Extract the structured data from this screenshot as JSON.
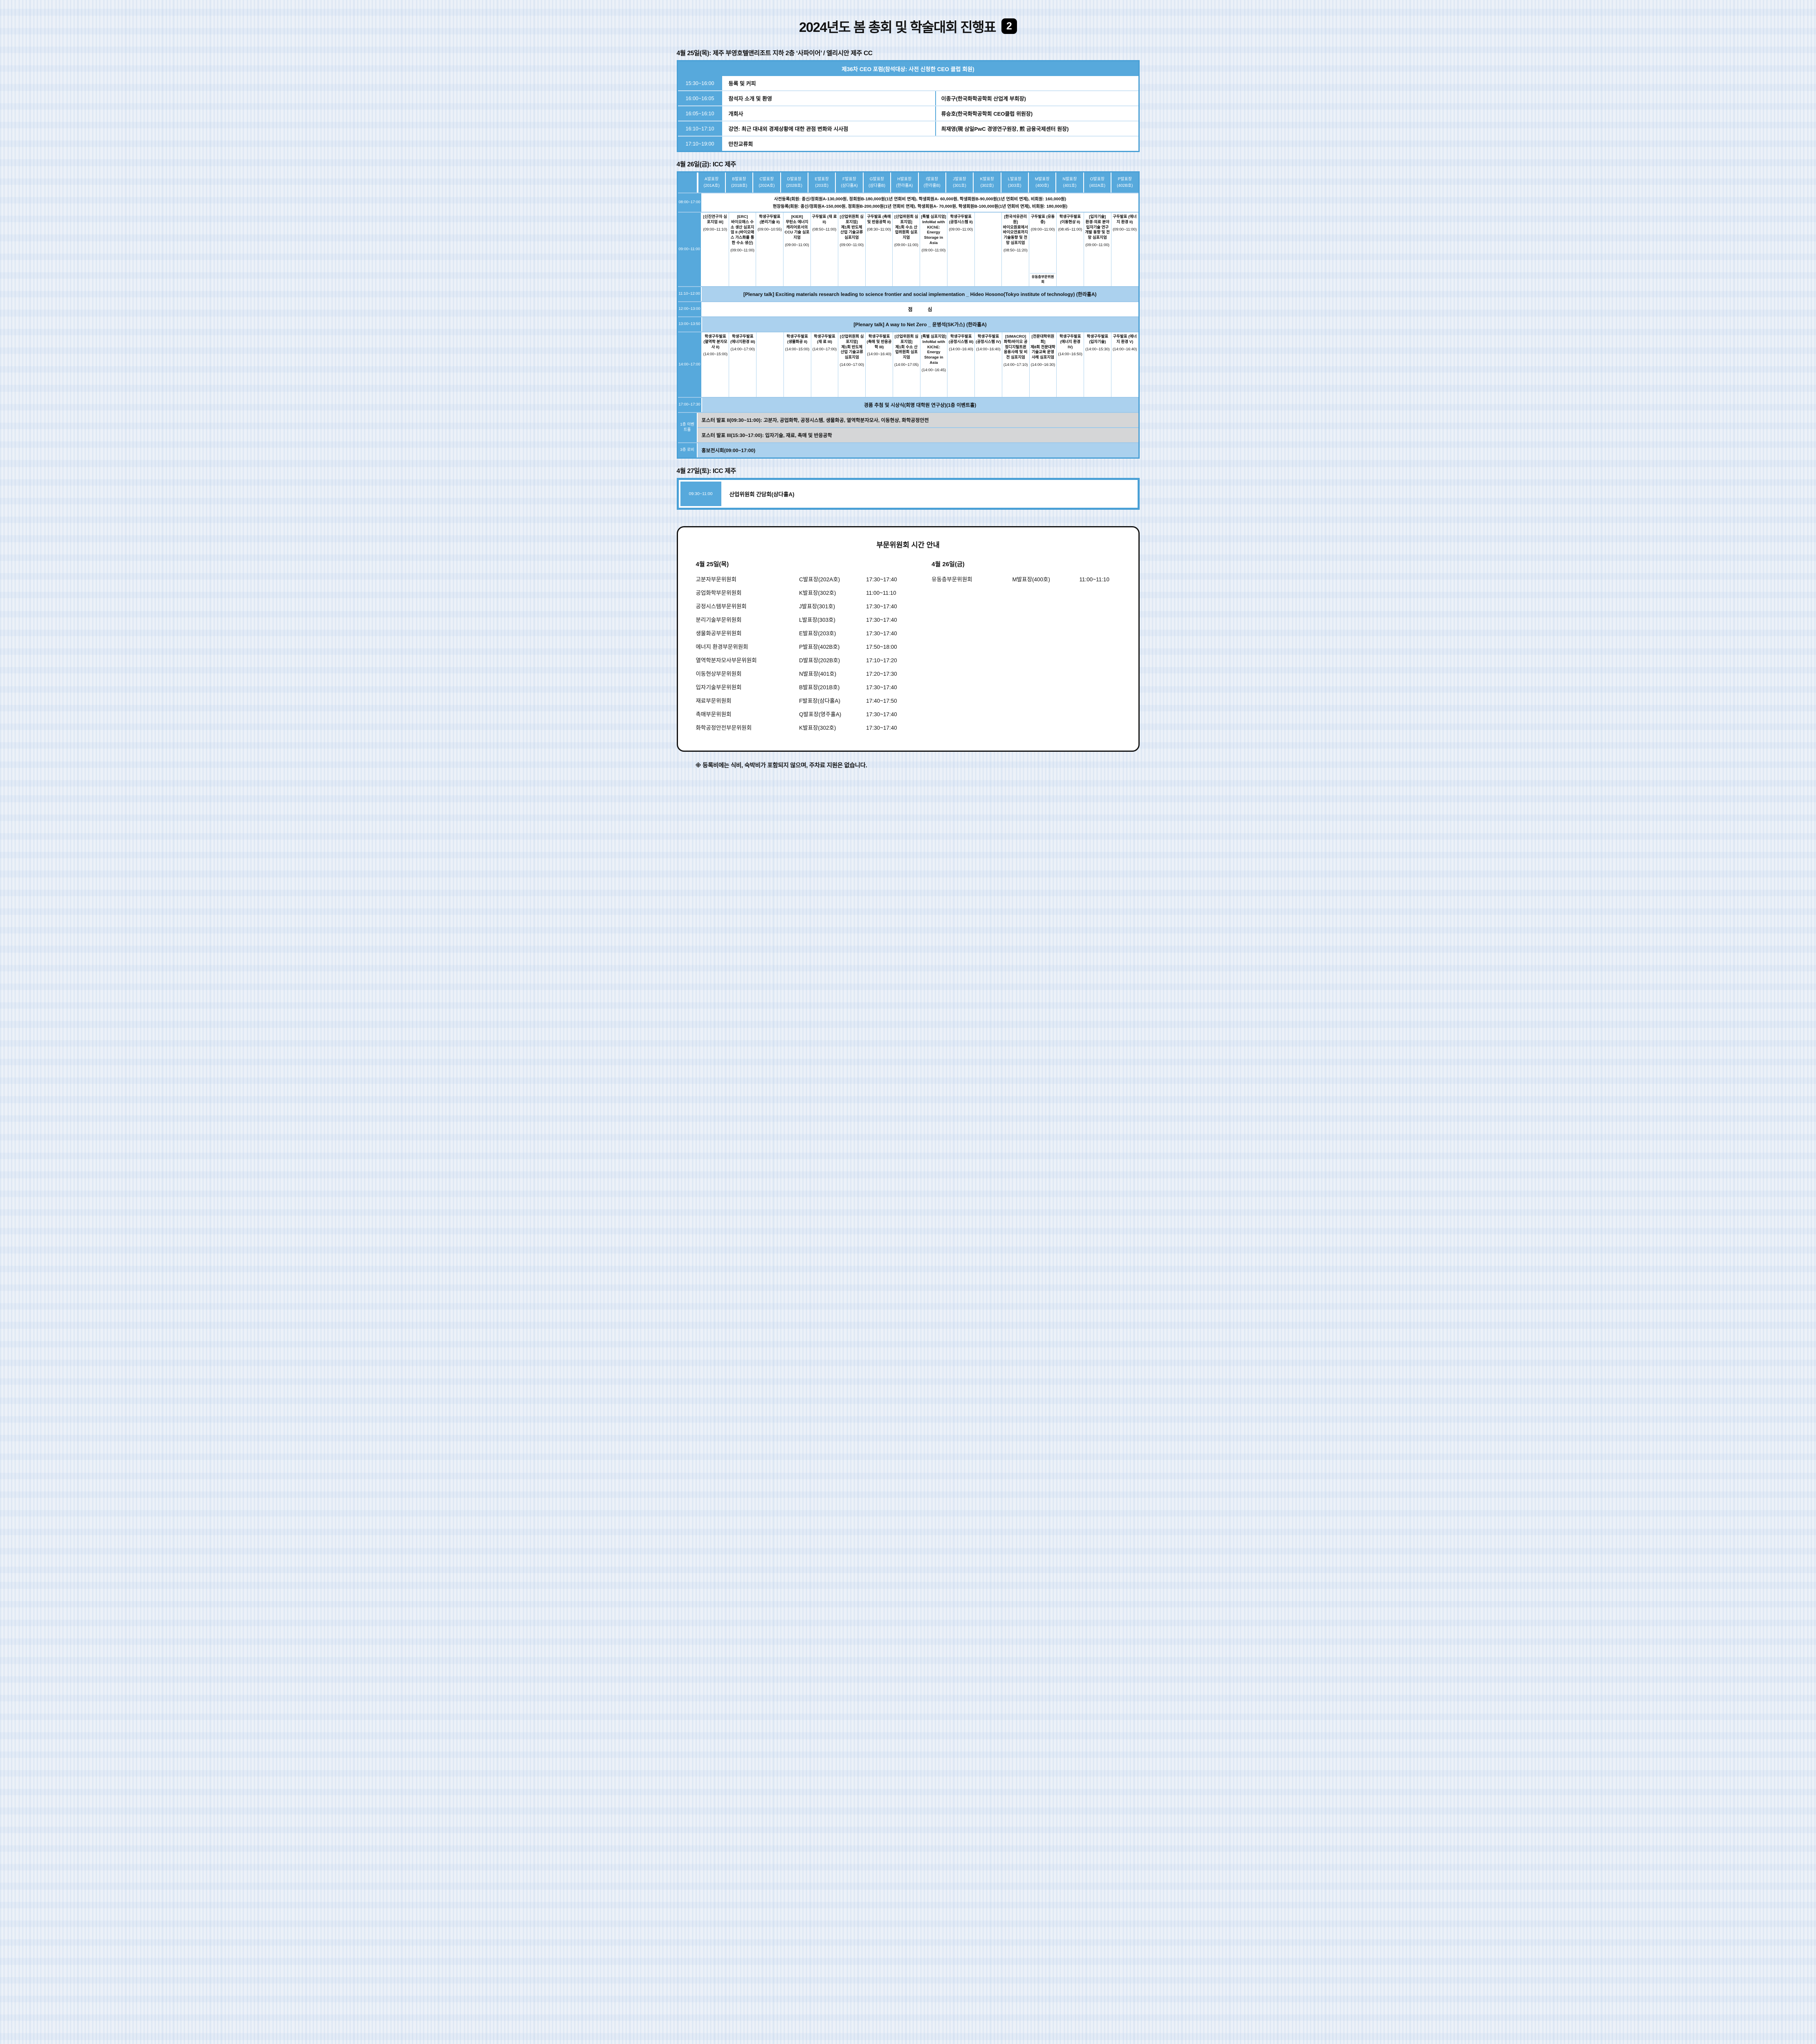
{
  "page": {
    "title": "2024년도 봄 총회 및 학술대회 진행표",
    "title_badge": "2",
    "footnote": "※ 등록비에는 식비, 숙박비가 포함되지 않으며, 주차료 지원은 없습니다."
  },
  "colors": {
    "accent_blue": "#57a9dc",
    "band_light_blue": "#abd1ee",
    "band_gray": "#d5d6d7",
    "badge_black": "#000000"
  },
  "day1": {
    "heading": "4월 25일(목): 제주 부영호텔앤리조트 지하 2층 ‘사파이어’ / 엘리시안 제주 CC",
    "forum": {
      "header": "제36차 CEO 포럼(참석대상: 사전 신청한 CEO 클럽 회원)",
      "rows": [
        {
          "time": "15:30~16:00",
          "activity": "등록 및 커피",
          "person": ""
        },
        {
          "time": "16:00~16:05",
          "activity": "참석자 소개 및 환영",
          "person": "이종구(한국화학공학회 산업계 부회장)"
        },
        {
          "time": "16:05~16:10",
          "activity": "개회사",
          "person": "류승호(한국화학공학회 CEO클럽 위원장)"
        },
        {
          "time": "16:10~17:10",
          "activity": "강연: 최근 대내외 경제상황에 대한 관점 변화와 시사점",
          "person": "최재영(現 삼일PwC 경영연구원장, 煎 금융국제센터 원장)"
        },
        {
          "time": "17:10~19:00",
          "activity": "만찬교류회",
          "person": ""
        }
      ]
    }
  },
  "day2": {
    "heading": "4월 26일(금): ICC 제주",
    "rooms": [
      {
        "name": "A발표장",
        "room": "(201A호)"
      },
      {
        "name": "B발표장",
        "room": "(201B호)"
      },
      {
        "name": "C발표장",
        "room": "(202A호)"
      },
      {
        "name": "D발표장",
        "room": "(202B호)"
      },
      {
        "name": "E발표장",
        "room": "(203호)"
      },
      {
        "name": "F발표장",
        "room": "(삼다홀A)"
      },
      {
        "name": "G발표장",
        "room": "(삼다홀B)"
      },
      {
        "name": "H발표장",
        "room": "(한라홀A)"
      },
      {
        "name": "I발표장",
        "room": "(한라홀B)"
      },
      {
        "name": "J발표장",
        "room": "(301호)"
      },
      {
        "name": "K발표장",
        "room": "(302호)"
      },
      {
        "name": "L발표장",
        "room": "(303호)"
      },
      {
        "name": "M발표장",
        "room": "(400호)"
      },
      {
        "name": "N발표장",
        "room": "(401호)"
      },
      {
        "name": "O발표장",
        "room": "(402A호)"
      },
      {
        "name": "P발표장",
        "room": "(402B호)"
      }
    ],
    "registration": {
      "time": "08:00~17:00",
      "line1": "사전등록(회원: 종신/정회원A-130,000원, 정회원B-180,000원(1년 연회비 면제), 학생회원A- 60,000원, 학생회원B-90,000원(1년 연회비 면제), 비회원: 160,000원)",
      "line2": "현장등록(회원: 종신/정회원A-150,000원, 정회원B-200,000원(1년 연회비 면제), 학생회원A- 70,000원, 학생회원B-100,000원(1년 연회비 면제), 비회원: 180,000원)"
    },
    "morning": {
      "time": "09:00~11:00",
      "cells": [
        {
          "head": "[신진연구자 심포지엄 III]",
          "time": "(09:00~11:10)"
        },
        {
          "head": "[ERC]",
          "body": "바이오매스 수소 생산 심포지엄 II (바이오매스 가스화를 통한 수소 생산)",
          "time": "(09:00~11:00)"
        },
        {
          "body": "학생구두발표 (분리기술 II)",
          "time": "(09:00~10:55)"
        },
        {
          "head": "[KIER]",
          "body": "무탄소 에너지 캐리어로서의 CCU 기술 심포지엄",
          "time": "(09:00~11:00)"
        },
        {
          "body": "구두발표 (재 료 II)",
          "time": "(08:50~11:00)"
        },
        {
          "head": "[산업위원회 심포지엄]",
          "body": "제1회 반도체 산업 기술교류 심포지엄",
          "time": "(09:00~11:00)"
        },
        {
          "body": "구두발표 (촉매 및 반응공학 II)",
          "time": "(08:30~11:00)"
        },
        {
          "head": "[산업위원회 심포지엄]",
          "body": "제1회 수소 산업위원회 심포지엄",
          "time": "(09:00~11:00)"
        },
        {
          "head": "[특별 심포지엄]",
          "body": "InfoMat with KIChE: Energy Storage in Asia",
          "time": "(09:00~11:00)"
        },
        {
          "body": "학생구두발표 (공정시스템 II)",
          "time": "(09:00~11:00)"
        },
        {},
        {
          "head": "[한국석유관리원]",
          "body": "바이오원료에서 바이오연료까지 기술동향 및 전망 심포지엄",
          "time": "(08:50~11:20)"
        },
        {
          "body": "구두발표 (유동층)",
          "time": "(09:00~11:00)",
          "note": "유동층부문위원회"
        },
        {
          "body": "학생구두발표 (이동현상 II)",
          "time": "(08:45~11:00)"
        },
        {
          "head": "[입자기술]",
          "body": "환경·의료 분야 입자기술 연구개발 동향 및 전망 심포지엄",
          "time": "(09:00~11:00)"
        },
        {
          "body": "구두발표 (에너지 환경 II)",
          "time": "(09:00~11:00)"
        }
      ]
    },
    "plenary1": {
      "time": "11:10~12:00",
      "text": "[Plenary talk] Exciting materials research leading to science frontier and social implementation _ Hideo Hosono(Tokyo institute of technology) (한라홀A)"
    },
    "lunch": {
      "time": "12:00~13:00",
      "text": "점 심"
    },
    "plenary2": {
      "time": "13:00~13:50",
      "text": "[Plenary talk] A way to Net Zero _ 윤병석(SK가스) (한라홀A)"
    },
    "afternoon": {
      "time": "14:00~17:00",
      "cells": [
        {
          "body": "학생구두발표 (열역학 분자모사 II)",
          "time": "(14:00~15:00)"
        },
        {
          "body": "학생구두발표 (에너지환경 III)",
          "time": "(14:00~17:00)"
        },
        {},
        {
          "body": "학생구두발표 (생물화공 II)",
          "time": "(14:00~15:00)"
        },
        {
          "body": "학생구두발표 (재 료 III)",
          "time": "(14:00~17:00)"
        },
        {
          "head": "[산업위원회 심포지엄]",
          "body": "제1회 반도체 산업 기술교류 심포지엄",
          "time": "(14:00~17:00)"
        },
        {
          "body": "학생구두발표 (촉매 및 반응공학 III)",
          "time": "(14:00~16:40)"
        },
        {
          "head": "[산업위원회 심포지엄]",
          "body": "제1회 수소 산업위원회 심포지엄",
          "time": "(14:00~17:05)"
        },
        {
          "head": "[특별 심포지엄]",
          "body": "InfoMat with KIChE: Energy Storage in Asia",
          "time": "(14:00~16:45)"
        },
        {
          "body": "학생구두발표 (공정시스템 III)",
          "time": "(14:00~16:40)"
        },
        {
          "body": "학생구두발표 (공정시스템 IV)",
          "time": "(14:00~16:40)"
        },
        {
          "head": "[SIMACRO]",
          "body": "화학/바이오 공정디지털트윈 응용사례 및 비전 심포지엄",
          "time": "(14:00~17:10)"
        },
        {
          "head": "[전문대학위원회]",
          "body": "제8회 전문대학 기술교육 운영사례 심포지엄",
          "time": "(14:00~16:30)"
        },
        {
          "body": "학생구두발표 (에너지 환경 IV)",
          "time": "(14:00~16:50)"
        },
        {
          "body": "학생구두발표 (입자기술)",
          "time": "(14:00~15:30)"
        },
        {
          "body": "구두발표 (에너지 환경 V)",
          "time": "(14:00~16:40)"
        }
      ]
    },
    "raffle": {
      "time": "17:00~17:30",
      "text": "경품 추첨 및 시상식(회명 대학원 연구상)(1층 이벤트홀)"
    },
    "event_hall": {
      "label": "1층 이벤트홀",
      "poster2": "포스터 발표 II(09:30~11:00): 고분자, 공업화학, 공정시스템, 생물화공, 열역학분자모사, 이동현상, 화학공정안전",
      "poster3": "포스터 발표 III(15:30~17:00): 입자기술, 재료, 촉매 및 반응공학"
    },
    "lobby": {
      "label": "3층 로비",
      "text": "홍보전시회(09:00~17:00)"
    }
  },
  "day3": {
    "heading": "4월 27일(토): ICC 제주",
    "row": {
      "time": "09:30~11:00",
      "text": "산업위원회 간담회(삼다홀A)"
    }
  },
  "committee": {
    "title": "부문위원회 시간 안내",
    "day1_heading": "4월 25일(목)",
    "day1_rows": [
      {
        "name": "고분자부문위원회",
        "room": "C발표장(202A호)",
        "time": "17:30~17:40"
      },
      {
        "name": "공업화학부문위원회",
        "room": "K발표장(302호)",
        "time": "11:00~11:10"
      },
      {
        "name": "공정시스템부문위원회",
        "room": "J발표장(301호)",
        "time": "17:30~17:40"
      },
      {
        "name": "분리기술부문위원회",
        "room": "L발표장(303호)",
        "time": "17:30~17:40"
      },
      {
        "name": "생물화공부문위원회",
        "room": "E발표장(203호)",
        "time": "17:30~17:40"
      },
      {
        "name": "에너지 환경부문위원회",
        "room": "P발표장(402B호)",
        "time": "17:50~18:00"
      },
      {
        "name": "열역학분자모사부문위원회",
        "room": "D발표장(202B호)",
        "time": "17:10~17:20"
      },
      {
        "name": "이동현상부문위원회",
        "room": "N발표장(401호)",
        "time": "17:20~17:30"
      },
      {
        "name": "입자기술부문위원회",
        "room": "B발표장(201B호)",
        "time": "17:30~17:40"
      },
      {
        "name": "재료부문위원회",
        "room": "F발표장(삼다홀A)",
        "time": "17:40~17:50"
      },
      {
        "name": "촉매부문위원회",
        "room": "Q발표장(영주홀A)",
        "time": "17:30~17:40"
      },
      {
        "name": "화학공정안전부문위원회",
        "room": "K발표장(302호)",
        "time": "17:30~17:40"
      }
    ],
    "day2_heading": "4월 26일(금)",
    "day2_rows": [
      {
        "name": "유동층부문위원회",
        "room": "M발표장(400호)",
        "time": "11:00~11:10"
      }
    ]
  }
}
